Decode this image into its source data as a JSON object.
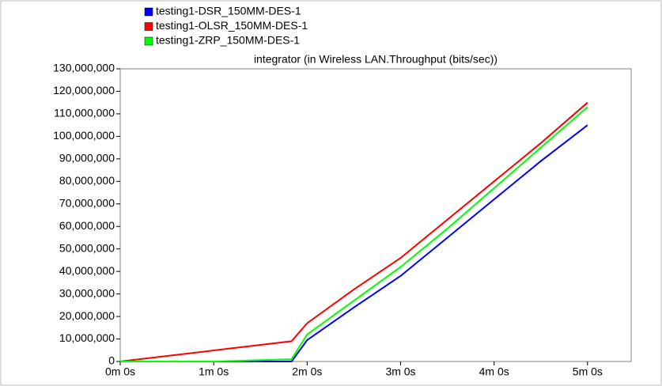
{
  "chart_data": {
    "type": "line",
    "title": "integrator (in Wireless LAN.Throughput (bits/sec))",
    "x": [
      0,
      60,
      110,
      120,
      150,
      180,
      210,
      240,
      270,
      300
    ],
    "series": [
      {
        "name": "testing1-DSR_150MM-DES-1",
        "color": "#0000ff",
        "values": [
          0,
          0,
          0,
          9500000,
          24000000,
          38000000,
          55000000,
          72000000,
          89000000,
          105000000
        ]
      },
      {
        "name": "testing1-OLSR_150MM-DES-1",
        "color": "#ff0000",
        "values": [
          0,
          4900000,
          9000000,
          17000000,
          32000000,
          46000000,
          63000000,
          80000000,
          97000000,
          115000000
        ]
      },
      {
        "name": "testing1-ZRP_150MM-DES-1",
        "color": "#00ff00",
        "values": [
          0,
          0,
          1000000,
          12000000,
          27000000,
          42000000,
          59000000,
          77000000,
          95000000,
          113000000
        ]
      }
    ],
    "xlim": [
      0,
      328
    ],
    "xticks": [
      {
        "value": 0,
        "label": "0m 0s"
      },
      {
        "value": 60,
        "label": "1m 0s"
      },
      {
        "value": 120,
        "label": "2m 0s"
      },
      {
        "value": 180,
        "label": "3m 0s"
      },
      {
        "value": 240,
        "label": "4m 0s"
      },
      {
        "value": 300,
        "label": "5m 0s"
      }
    ],
    "ylim": [
      0,
      130000000
    ],
    "yticks": [
      0,
      {
        "value": 10000000,
        "label": "10,000,000"
      },
      {
        "value": 20000000,
        "label": "20,000,000"
      },
      {
        "value": 30000000,
        "label": "30,000,000"
      },
      {
        "value": 40000000,
        "label": "40,000,000"
      },
      {
        "value": 50000000,
        "label": "50,000,000"
      },
      {
        "value": 60000000,
        "label": "60,000,000"
      },
      {
        "value": 70000000,
        "label": "70,000,000"
      },
      {
        "value": 80000000,
        "label": "80,000,000"
      },
      {
        "value": 90000000,
        "label": "90,000,000"
      },
      {
        "value": 100000000,
        "label": "100,000,000"
      },
      {
        "value": 110000000,
        "label": "110,000,000"
      },
      {
        "value": 120000000,
        "label": "120,000,000"
      },
      {
        "value": 130000000,
        "label": "130,000,000"
      }
    ],
    "grid": false
  }
}
